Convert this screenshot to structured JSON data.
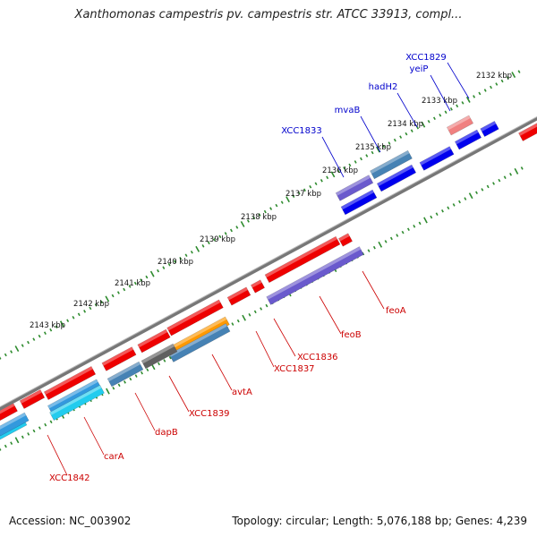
{
  "title": "Xanthomonas campestris pv. campestris str. ATCC 33913, compl...",
  "footer": {
    "accession": "Accession: NC_003902",
    "summary": "Topology: circular; Length: 5,076,188 bp; Genes: 4,239"
  },
  "colors": {
    "backbone": "#808080",
    "tick": "#2e8b2e",
    "label_red": "#cc0000",
    "label_blue": "#0000cc",
    "cds_red": "#ee0000",
    "cds_blue": "#0000ee",
    "rna_light_blue": "#3399dd",
    "cyan": "#22ccee",
    "purple": "#6a5acd",
    "orange": "#ff9900",
    "grey": "#606060",
    "pink": "#f08080",
    "steel": "#4682b4"
  },
  "scale_labels": [
    "2132 kbp",
    "2133 kbp",
    "2134 kbp",
    "2135 kbp",
    "2136 kbp",
    "2137 kbp",
    "2138 kbp",
    "2139 kbp",
    "2140 kbp",
    "2141 kbp",
    "2142 kbp",
    "2143 kbp"
  ],
  "gene_labels": [
    {
      "text": "XCC1829",
      "strand": "upper"
    },
    {
      "text": "yeiP",
      "strand": "upper"
    },
    {
      "text": "hadH2",
      "strand": "upper"
    },
    {
      "text": "mvaB",
      "strand": "upper"
    },
    {
      "text": "XCC1833",
      "strand": "upper"
    },
    {
      "text": "feoA",
      "strand": "lower"
    },
    {
      "text": "feoB",
      "strand": "lower"
    },
    {
      "text": "XCC1836",
      "strand": "lower"
    },
    {
      "text": "XCC1837",
      "strand": "lower"
    },
    {
      "text": "avtA",
      "strand": "lower"
    },
    {
      "text": "XCC1839",
      "strand": "lower"
    },
    {
      "text": "dapB",
      "strand": "lower"
    },
    {
      "text": "carA",
      "strand": "lower"
    },
    {
      "text": "XCC1842",
      "strand": "lower"
    }
  ]
}
